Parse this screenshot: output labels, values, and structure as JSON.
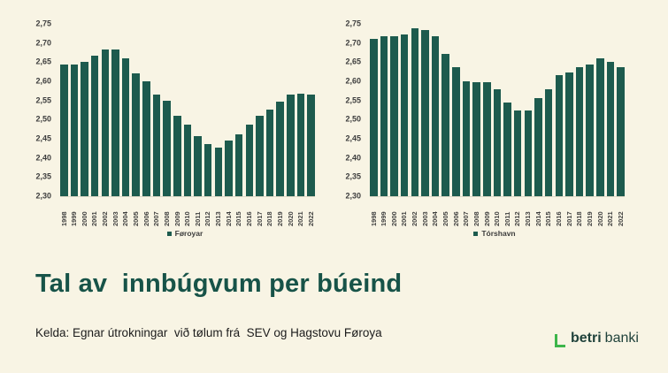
{
  "title": "Tal av  innbúgvum per búeind",
  "source": "Kelda: Egnar útrokningar  við tølum frá  SEV og Hagstovu Føroya",
  "logo": {
    "bold_text": "betri",
    "regular_text": "banki",
    "bracket_color": "#3db54a",
    "text_color": "#20423b"
  },
  "colors": {
    "background": "#f8f4e4",
    "bar": "#1d5b4e",
    "title_text": "#175348",
    "axis_text": "#3d3d3d",
    "source_text": "#1c1c1c"
  },
  "chart_data": [
    {
      "type": "bar",
      "legend": "Føroyar",
      "legend_position": "bottom",
      "grid": false,
      "ylim": [
        2.3,
        2.75
      ],
      "y_tick_labels": [
        "2,75",
        "2,70",
        "2,65",
        "2,60",
        "2,55",
        "2,50",
        "2,45",
        "2,40",
        "2,35",
        "2,30"
      ],
      "categories": [
        "1998",
        "1999",
        "2000",
        "2001",
        "2002",
        "2003",
        "2004",
        "2005",
        "2006",
        "2007",
        "2008",
        "2009",
        "2010",
        "2011",
        "2012",
        "2013",
        "2014",
        "2015",
        "2016",
        "2017",
        "2018",
        "2019",
        "2020",
        "2021",
        "2022"
      ],
      "values": [
        2.645,
        2.645,
        2.651,
        2.666,
        2.684,
        2.682,
        2.66,
        2.62,
        2.601,
        2.565,
        2.549,
        2.511,
        2.488,
        2.456,
        2.436,
        2.427,
        2.446,
        2.462,
        2.488,
        2.511,
        2.526,
        2.548,
        2.565,
        2.568,
        2.565
      ]
    },
    {
      "type": "bar",
      "legend": "Tórshavn",
      "legend_position": "bottom",
      "grid": false,
      "ylim": [
        2.3,
        2.75
      ],
      "y_tick_labels": [
        "2,75",
        "2,70",
        "2,65",
        "2,60",
        "2,55",
        "2,50",
        "2,45",
        "2,40",
        "2,35",
        "2,30"
      ],
      "categories": [
        "1998",
        "1999",
        "2000",
        "2001",
        "2002",
        "2003",
        "2004",
        "2005",
        "2006",
        "2007",
        "2008",
        "2009",
        "2010",
        "2011",
        "2012",
        "2013",
        "2014",
        "2015",
        "2016",
        "2017",
        "2018",
        "2019",
        "2020",
        "2021",
        "2022"
      ],
      "values": [
        2.71,
        2.718,
        2.718,
        2.722,
        2.738,
        2.733,
        2.718,
        2.671,
        2.638,
        2.6,
        2.597,
        2.598,
        2.579,
        2.545,
        2.523,
        2.525,
        2.557,
        2.58,
        2.617,
        2.624,
        2.636,
        2.644,
        2.659,
        2.651,
        2.637
      ]
    }
  ]
}
